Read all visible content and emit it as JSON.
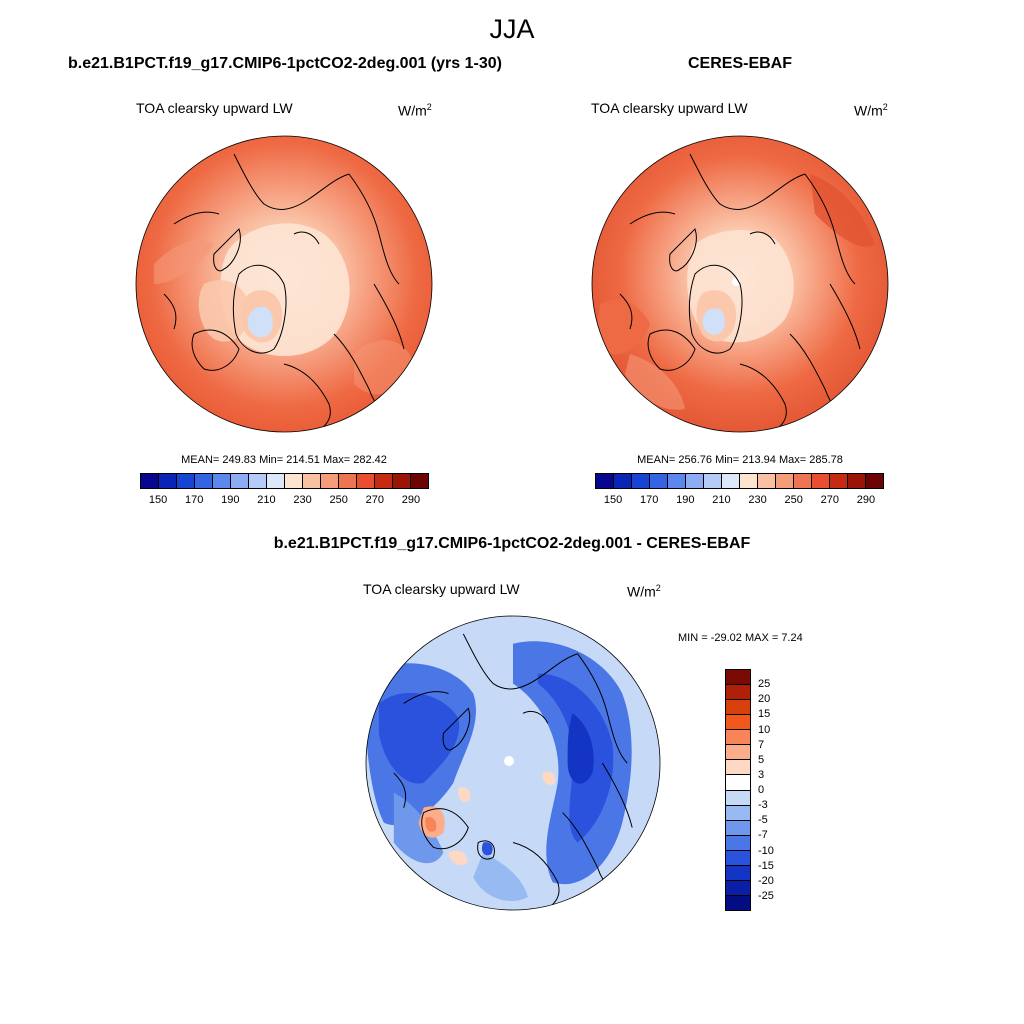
{
  "figure": {
    "title": "JJA"
  },
  "panels": [
    {
      "title": "b.e21.B1PCT.f19_g17.CMIP6-1pctCO2-2deg.001 (yrs 1-30)",
      "variable": "TOA clearsky upward LW",
      "units_base": "W/m",
      "units_exp": "2",
      "stats": "MEAN= 249.83  Min= 214.51  Max= 282.42"
    },
    {
      "title": "CERES-EBAF",
      "variable": "TOA clearsky upward LW",
      "units_base": "W/m",
      "units_exp": "2",
      "stats": "MEAN= 256.76  Min= 213.94  Max= 285.78"
    },
    {
      "title": "b.e21.B1PCT.f19_g17.CMIP6-1pctCO2-2deg.001 - CERES-EBAF",
      "variable": "TOA clearsky upward LW",
      "units_base": "W/m",
      "units_exp": "2",
      "stats": "MIN = -29.02 MAX =   7.24"
    }
  ],
  "colorbar_abs": {
    "colors": [
      "#08068e",
      "#0a24b8",
      "#1844d4",
      "#3464e4",
      "#5c88ee",
      "#8cacf4",
      "#b6ccf8",
      "#dce8fa",
      "#fde4cf",
      "#f9c0a2",
      "#f59c78",
      "#ef7452",
      "#e94e30",
      "#c62a12",
      "#9a1408",
      "#6c0404"
    ],
    "ticks": [
      "150",
      "170",
      "190",
      "210",
      "230",
      "250",
      "270",
      "290"
    ]
  },
  "colorbar_diff": {
    "colors": [
      "#7a0a04",
      "#b02008",
      "#d8400c",
      "#f2581c",
      "#f8845a",
      "#fbad8c",
      "#fdd8c2",
      "#ffffff",
      "#c6daf8",
      "#98baf2",
      "#6e98ec",
      "#4a76e6",
      "#2a52dc",
      "#1434c4",
      "#0a1ea6",
      "#040c84"
    ],
    "ticks": [
      "25",
      "20",
      "15",
      "10",
      "7",
      "5",
      "3",
      "0",
      "-3",
      "-5",
      "-7",
      "-10",
      "-15",
      "-20",
      "-25"
    ]
  },
  "map_colors": {
    "ocean_orange": "#ee6a44",
    "mid_orange": "#f59878",
    "light_peach": "#fbc8ac",
    "pale": "#fde4d4",
    "light_blue": "#cfe0f8",
    "diff_light": "#cfe0f8",
    "diff_mid": "#6e98ec",
    "diff_dark": "#2a52dc"
  }
}
